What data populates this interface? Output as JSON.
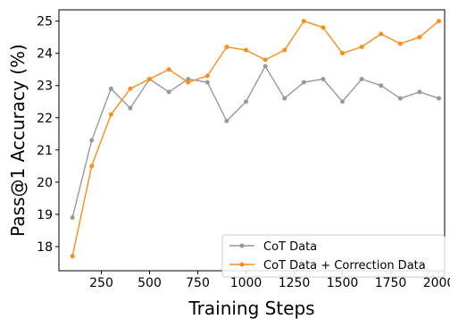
{
  "chart_data": {
    "type": "line",
    "xlabel": "Training Steps",
    "ylabel": "Pass@1 Accuracy (%)",
    "xlim": [
      30,
      2030
    ],
    "ylim": [
      17.25,
      25.35
    ],
    "x_ticks": [
      250,
      500,
      750,
      1000,
      1250,
      1500,
      1750,
      2000
    ],
    "y_ticks": [
      18,
      19,
      20,
      21,
      22,
      23,
      24,
      25
    ],
    "grid": false,
    "legend_position": "lower-right",
    "x": [
      100,
      200,
      300,
      400,
      500,
      600,
      700,
      800,
      900,
      1000,
      1100,
      1200,
      1300,
      1400,
      1500,
      1600,
      1700,
      1800,
      1900,
      2000
    ],
    "series": [
      {
        "name": "CoT Data",
        "color": "#999999",
        "values": [
          18.9,
          21.3,
          22.9,
          22.3,
          23.2,
          22.8,
          23.2,
          23.1,
          21.9,
          22.5,
          23.6,
          22.6,
          23.1,
          23.2,
          22.5,
          23.2,
          23.0,
          22.6,
          22.8,
          22.6
        ]
      },
      {
        "name": "CoT Data + Correction Data",
        "color": "#ff8c1a",
        "values": [
          17.7,
          20.5,
          22.1,
          22.9,
          23.2,
          23.5,
          23.1,
          23.3,
          24.2,
          24.1,
          23.8,
          24.1,
          25.0,
          24.8,
          24.0,
          24.2,
          24.6,
          24.3,
          24.5,
          25.0
        ]
      }
    ]
  }
}
